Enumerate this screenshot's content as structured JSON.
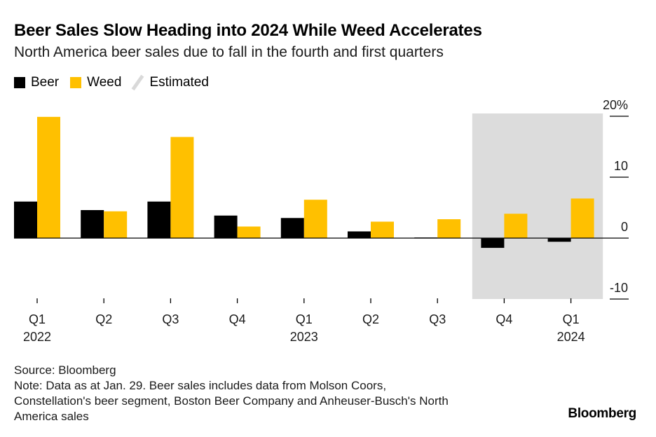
{
  "header": {
    "title": "Beer Sales Slow Heading into 2024 While Weed Accelerates",
    "subtitle": "North America beer sales due to fall in the fourth and first quarters"
  },
  "legend": {
    "beer_label": "Beer",
    "weed_label": "Weed",
    "estimated_label": "Estimated"
  },
  "footer": {
    "source": "Source: Bloomberg",
    "note_line1": "Note: Data as at Jan. 29. Beer sales includes data from Molson Coors,",
    "note_line2": "Constellation's beer segment, Boston Beer Company and Anheuser-Busch's North",
    "note_line3": "America sales"
  },
  "brand": "Bloomberg",
  "colors": {
    "beer": "#000000",
    "weed": "#ffc000",
    "estimated": "#dcdcdc"
  },
  "chart_data": {
    "type": "bar",
    "categories": [
      "Q1",
      "Q2",
      "Q3",
      "Q4",
      "Q1",
      "Q2",
      "Q3",
      "Q4",
      "Q1"
    ],
    "year_labels": [
      "2022",
      "",
      "",
      "",
      "2023",
      "",
      "",
      "",
      "2024"
    ],
    "series": [
      {
        "name": "Beer",
        "values": [
          6.0,
          4.6,
          6.0,
          3.7,
          3.3,
          1.1,
          0.1,
          -1.6,
          -0.6
        ]
      },
      {
        "name": "Weed",
        "values": [
          19.9,
          4.4,
          16.6,
          1.9,
          6.3,
          2.7,
          3.1,
          4.0,
          6.5
        ]
      }
    ],
    "estimated_categories": [
      7,
      8
    ],
    "y_ticks": [
      {
        "value": 20,
        "label": "20%"
      },
      {
        "value": 10,
        "label": "10"
      },
      {
        "value": 0,
        "label": "0"
      },
      {
        "value": -10,
        "label": "-10"
      }
    ],
    "ylim": [
      -10,
      20
    ],
    "y_axis_side": "right",
    "xlabel": "",
    "ylabel": "",
    "grid": false
  }
}
